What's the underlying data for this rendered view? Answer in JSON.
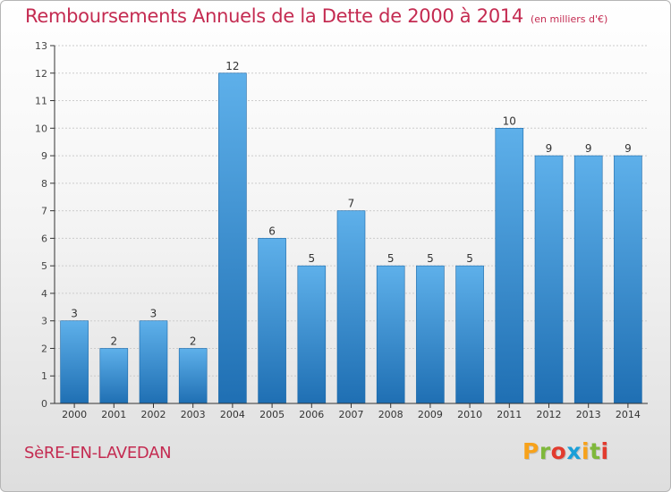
{
  "header": {
    "title": "Remboursements Annuels de la Dette de 2000 à 2014",
    "unit": "(en milliers d'€)"
  },
  "footer": {
    "commune": "SèRE-EN-LAVEDAN",
    "brand": "Proxiti",
    "brand_colors": [
      "#f7a21b",
      "#7fb83b",
      "#e23b2e",
      "#1a9fd8",
      "#f7a21b",
      "#7fb83b",
      "#e23b2e"
    ]
  },
  "colors": {
    "title": "#c42b51",
    "bar_top": "#5eb0ea",
    "bar_bottom": "#1f6fb3",
    "grid": "#cccccc",
    "axis": "#333333"
  },
  "chart_data": {
    "type": "bar",
    "title": "Remboursements Annuels de la Dette de 2000 à 2014",
    "unit": "(en milliers d'€)",
    "categories": [
      "2000",
      "2001",
      "2002",
      "2003",
      "2004",
      "2005",
      "2006",
      "2007",
      "2008",
      "2009",
      "2010",
      "2011",
      "2012",
      "2013",
      "2014"
    ],
    "values": [
      3,
      2,
      3,
      2,
      12,
      6,
      5,
      7,
      5,
      5,
      5,
      10,
      9,
      9,
      9
    ],
    "ylim": [
      0,
      13
    ],
    "yticks": [
      0,
      1,
      2,
      3,
      4,
      5,
      6,
      7,
      8,
      9,
      10,
      11,
      12,
      13
    ],
    "grid": true,
    "data_labels": true
  }
}
